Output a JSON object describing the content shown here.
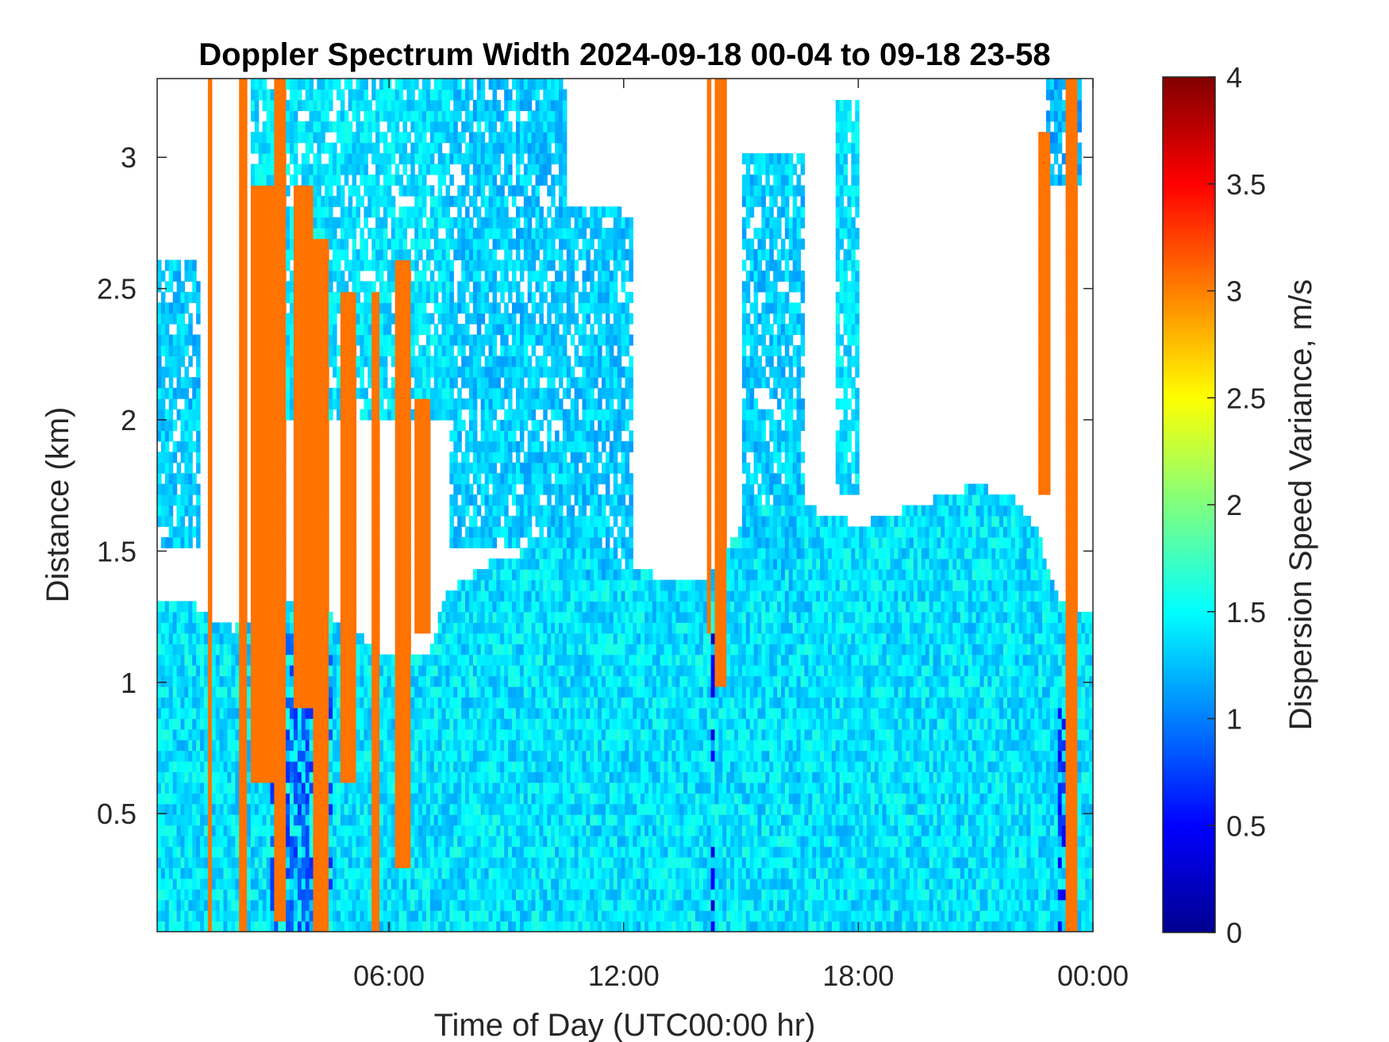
{
  "chart_data": {
    "type": "heatmap",
    "title": "Doppler Spectrum Width 2024-09-18 00-04 to 09-18 23-58",
    "xlabel": "Time of Day (UTC00:00 hr)",
    "ylabel": "Distance (km)",
    "colorbar_label": "Dispersion Speed Variance, m/s",
    "colormap": "jet",
    "xlim_hours": [
      0.07,
      24.0
    ],
    "ylim_km": [
      0.05,
      3.3
    ],
    "clim": [
      0,
      4
    ],
    "x_ticks": [
      {
        "value": 6,
        "label": "06:00"
      },
      {
        "value": 12,
        "label": "12:00"
      },
      {
        "value": 18,
        "label": "18:00"
      },
      {
        "value": 24,
        "label": "00:00"
      }
    ],
    "y_ticks": [
      {
        "value": 0.5,
        "label": "0.5"
      },
      {
        "value": 1,
        "label": "1"
      },
      {
        "value": 1.5,
        "label": "1.5"
      },
      {
        "value": 2,
        "label": "2"
      },
      {
        "value": 2.5,
        "label": "2.5"
      },
      {
        "value": 3,
        "label": "3"
      }
    ],
    "colorbar_ticks": [
      {
        "value": 0,
        "label": "0"
      },
      {
        "value": 0.5,
        "label": "0.5"
      },
      {
        "value": 1,
        "label": "1"
      },
      {
        "value": 1.5,
        "label": "1.5"
      },
      {
        "value": 2,
        "label": "2"
      },
      {
        "value": 2.5,
        "label": "2.5"
      },
      {
        "value": 3,
        "label": "3"
      },
      {
        "value": 3.5,
        "label": "3.5"
      },
      {
        "value": 4,
        "label": "4"
      }
    ],
    "grid": false,
    "colorbar_position": "right",
    "background_value_m_s": 1.4,
    "cloud_top_km": [
      {
        "hour": 0.1,
        "km": 1.32
      },
      {
        "hour": 1.0,
        "km": 1.3
      },
      {
        "hour": 2.0,
        "km": 1.2
      },
      {
        "hour": 3.0,
        "km": 1.3
      },
      {
        "hour": 4.0,
        "km": 1.3
      },
      {
        "hour": 5.0,
        "km": 1.2
      },
      {
        "hour": 6.0,
        "km": 1.1
      },
      {
        "hour": 7.0,
        "km": 1.1
      },
      {
        "hour": 7.5,
        "km": 1.35
      },
      {
        "hour": 8.5,
        "km": 1.45
      },
      {
        "hour": 9.5,
        "km": 1.5
      },
      {
        "hour": 11.0,
        "km": 1.5
      },
      {
        "hour": 12.0,
        "km": 1.45
      },
      {
        "hour": 13.0,
        "km": 1.4
      },
      {
        "hour": 14.0,
        "km": 1.38
      },
      {
        "hour": 15.0,
        "km": 1.6
      },
      {
        "hour": 16.0,
        "km": 1.7
      },
      {
        "hour": 17.0,
        "km": 1.65
      },
      {
        "hour": 18.0,
        "km": 1.6
      },
      {
        "hour": 19.0,
        "km": 1.65
      },
      {
        "hour": 20.0,
        "km": 1.7
      },
      {
        "hour": 21.0,
        "km": 1.75
      },
      {
        "hour": 22.0,
        "km": 1.7
      },
      {
        "hour": 22.5,
        "km": 1.6
      },
      {
        "hour": 23.2,
        "km": 1.3
      },
      {
        "hour": 24.0,
        "km": 1.25
      }
    ],
    "upper_clouds": [
      {
        "h0": 0.1,
        "h1": 1.2,
        "bottom_km": 1.5,
        "top_km": 2.6,
        "value": 1.3
      },
      {
        "h0": 2.5,
        "h1": 7.5,
        "bottom_km": 2.0,
        "top_km": 3.3,
        "value": 1.4
      },
      {
        "h0": 7.5,
        "h1": 10.5,
        "bottom_km": 1.5,
        "top_km": 3.3,
        "value": 1.3
      },
      {
        "h0": 10.5,
        "h1": 12.2,
        "bottom_km": 1.4,
        "top_km": 2.8,
        "value": 1.3
      },
      {
        "h0": 15.0,
        "h1": 16.6,
        "bottom_km": 1.3,
        "top_km": 3.0,
        "value": 1.3
      },
      {
        "h0": 17.4,
        "h1": 18.0,
        "bottom_km": 1.7,
        "top_km": 3.2,
        "value": 1.4
      },
      {
        "h0": 22.8,
        "h1": 23.7,
        "bottom_km": 2.9,
        "top_km": 3.3,
        "value": 1.2
      }
    ],
    "high_variance_bands": [
      {
        "h0": 1.38,
        "h1": 1.5,
        "bottom_km": 0.05,
        "top_km": 3.3,
        "value": 3.05
      },
      {
        "h0": 2.2,
        "h1": 2.35,
        "bottom_km": 0.05,
        "top_km": 3.3,
        "value": 3.05
      },
      {
        "h0": 2.5,
        "h1": 3.05,
        "bottom_km": 0.6,
        "top_km": 2.9,
        "value": 3.05
      },
      {
        "h0": 3.05,
        "h1": 3.4,
        "bottom_km": 0.1,
        "top_km": 3.3,
        "value": 3.05
      },
      {
        "h0": 3.6,
        "h1": 4.1,
        "bottom_km": 0.9,
        "top_km": 2.9,
        "value": 3.05
      },
      {
        "h0": 4.1,
        "h1": 4.45,
        "bottom_km": 0.05,
        "top_km": 2.7,
        "value": 3.05
      },
      {
        "h0": 4.8,
        "h1": 5.2,
        "bottom_km": 0.6,
        "top_km": 2.5,
        "value": 3.05
      },
      {
        "h0": 5.6,
        "h1": 5.75,
        "bottom_km": 0.05,
        "top_km": 2.5,
        "value": 3.05
      },
      {
        "h0": 6.2,
        "h1": 6.55,
        "bottom_km": 0.3,
        "top_km": 2.6,
        "value": 3.05
      },
      {
        "h0": 6.7,
        "h1": 7.0,
        "bottom_km": 1.2,
        "top_km": 2.1,
        "value": 3.05
      },
      {
        "h0": 14.15,
        "h1": 14.25,
        "bottom_km": 1.2,
        "top_km": 3.3,
        "value": 3.05
      },
      {
        "h0": 14.35,
        "h1": 14.6,
        "bottom_km": 1.0,
        "top_km": 3.3,
        "value": 3.05
      },
      {
        "h0": 22.6,
        "h1": 22.9,
        "bottom_km": 1.7,
        "top_km": 3.1,
        "value": 3.05
      },
      {
        "h0": 23.3,
        "h1": 23.6,
        "bottom_km": 0.05,
        "top_km": 3.3,
        "value": 3.05
      }
    ],
    "low_variance_features": [
      {
        "h0": 14.2,
        "h1": 14.35,
        "bottom_km": 0.05,
        "top_km": 1.2,
        "value": 0.4
      },
      {
        "h0": 3.0,
        "h1": 4.6,
        "bottom_km": 0.05,
        "top_km": 1.2,
        "value": 0.8
      },
      {
        "h0": 23.1,
        "h1": 23.35,
        "bottom_km": 0.05,
        "top_km": 0.9,
        "value": 0.6
      }
    ]
  }
}
